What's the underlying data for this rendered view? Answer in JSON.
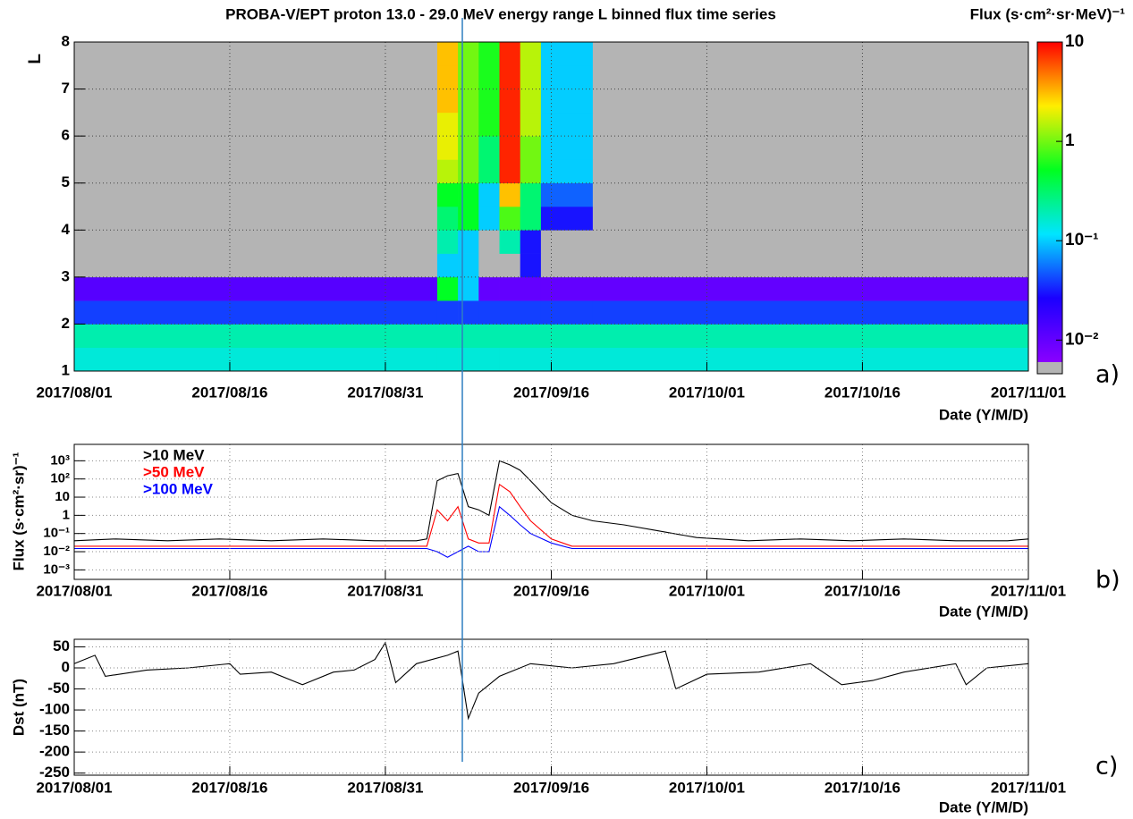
{
  "chart_data": [
    {
      "type": "heatmap",
      "title": "PROBA-V/EPT proton 13.0 - 29.0 MeV energy range L binned flux time series",
      "colorbar_label": "Flux (s·cm²·sr·MeV)⁻¹",
      "ylabel": "L",
      "xlabel": "Date (Y/M/D)",
      "panel_label": "a)",
      "x_edges": [
        "2017/08/01",
        "2017/08/16",
        "2017/08/31",
        "2017/09/05",
        "2017/09/07",
        "2017/09/09",
        "2017/09/11",
        "2017/09/13",
        "2017/09/15",
        "2017/09/20",
        "2017/10/01",
        "2017/10/16",
        "2017/11/01"
      ],
      "y_edges": [
        1,
        1.5,
        2,
        2.5,
        3,
        3.5,
        4,
        4.5,
        5,
        5.5,
        6,
        6.5,
        7,
        7.5,
        8
      ],
      "z": [
        [
          0.15,
          0.15,
          0.15,
          0.15,
          0.15,
          0.15,
          0.15,
          0.15,
          0.15,
          0.15,
          0.15,
          0.15
        ],
        [
          0.2,
          0.2,
          0.2,
          0.2,
          0.2,
          0.2,
          0.2,
          0.2,
          0.2,
          0.2,
          0.2,
          0.2
        ],
        [
          0.04,
          0.04,
          0.04,
          0.04,
          0.04,
          0.04,
          0.04,
          0.04,
          0.04,
          0.04,
          0.04,
          0.04
        ],
        [
          0.012,
          0.012,
          0.012,
          0.5,
          0.1,
          0.01,
          0.01,
          0.01,
          0.01,
          0.01,
          0.01,
          0.01
        ],
        [
          null,
          null,
          null,
          0.1,
          0.1,
          null,
          null,
          0.03,
          null,
          null,
          null,
          null
        ],
        [
          null,
          null,
          null,
          0.2,
          0.1,
          null,
          0.2,
          0.03,
          null,
          null,
          null,
          null
        ],
        [
          null,
          null,
          null,
          0.3,
          0.5,
          0.1,
          0.8,
          0.3,
          0.03,
          null,
          null,
          null
        ],
        [
          null,
          null,
          null,
          0.5,
          0.5,
          0.1,
          3,
          0.3,
          0.05,
          null,
          null,
          null
        ],
        [
          null,
          null,
          null,
          1.5,
          1,
          0.3,
          8,
          1,
          0.1,
          null,
          null,
          null
        ],
        [
          null,
          null,
          null,
          2,
          1,
          0.3,
          8,
          1,
          0.1,
          null,
          null,
          null
        ],
        [
          null,
          null,
          null,
          2,
          1,
          0.6,
          8,
          1.5,
          0.1,
          null,
          null,
          null
        ],
        [
          null,
          null,
          null,
          3,
          1,
          0.6,
          8,
          1.5,
          0.1,
          null,
          null,
          null
        ],
        [
          null,
          null,
          null,
          3,
          1,
          0.6,
          8,
          1.5,
          0.1,
          null,
          null,
          null
        ],
        [
          null,
          null,
          null,
          3,
          1,
          0.6,
          8,
          1.5,
          0.1,
          null,
          null,
          null
        ]
      ],
      "zscale": "log",
      "zlim": [
        0.006,
        10
      ],
      "zticks": [
        {
          "value": 0.01,
          "label": "10⁻²"
        },
        {
          "value": 0.1,
          "label": "10⁻¹"
        },
        1,
        10
      ],
      "colormap": [
        "#8a00ff",
        "#1a00ff",
        "#00e5ff",
        "#00ff20",
        "#ffee00",
        "#ff0000"
      ],
      "underflow_color": "#b4b4b4",
      "xlim": [
        "2017/08/01",
        "2017/11/01"
      ],
      "xticks": [
        "2017/08/01",
        "2017/08/16",
        "2017/08/31",
        "2017/09/16",
        "2017/10/01",
        "2017/10/16",
        "2017/11/01"
      ],
      "ylim": [
        1,
        8
      ],
      "yticks": [
        1,
        2,
        3,
        4,
        5,
        6,
        7,
        8
      ],
      "grid": true
    },
    {
      "type": "line",
      "ylabel": "Flux (s·cm²·sr)⁻¹",
      "xlabel": "Date (Y/M/D)",
      "panel_label": "b)",
      "x": [
        "2017/08/01",
        "2017/08/05",
        "2017/08/10",
        "2017/08/15",
        "2017/08/20",
        "2017/08/25",
        "2017/08/30",
        "2017/09/03",
        "2017/09/04",
        "2017/09/05",
        "2017/09/06",
        "2017/09/07",
        "2017/09/08",
        "2017/09/09",
        "2017/09/10",
        "2017/09/11",
        "2017/09/12",
        "2017/09/13",
        "2017/09/14",
        "2017/09/16",
        "2017/09/18",
        "2017/09/20",
        "2017/09/23",
        "2017/09/26",
        "2017/09/30",
        "2017/10/05",
        "2017/10/10",
        "2017/10/15",
        "2017/10/20",
        "2017/10/25",
        "2017/10/30",
        "2017/11/01"
      ],
      "series": [
        {
          "name": ">10 MeV",
          "color": "#000000",
          "values": [
            0.04,
            0.05,
            0.04,
            0.05,
            0.04,
            0.05,
            0.04,
            0.04,
            0.05,
            80,
            150,
            200,
            3,
            2,
            1,
            1000,
            600,
            300,
            80,
            5,
            1,
            0.5,
            0.3,
            0.15,
            0.06,
            0.04,
            0.05,
            0.04,
            0.05,
            0.04,
            0.04,
            0.05
          ]
        },
        {
          "name": ">50 MeV",
          "color": "#ff0000",
          "values": [
            0.02,
            0.02,
            0.02,
            0.02,
            0.02,
            0.02,
            0.02,
            0.02,
            0.02,
            2,
            0.5,
            3,
            0.05,
            0.03,
            0.03,
            50,
            20,
            3,
            0.5,
            0.05,
            0.02,
            0.02,
            0.02,
            0.02,
            0.02,
            0.02,
            0.02,
            0.02,
            0.02,
            0.02,
            0.02,
            0.02
          ]
        },
        {
          "name": ">100 MeV",
          "color": "#0000ff",
          "values": [
            0.015,
            0.015,
            0.015,
            0.015,
            0.015,
            0.015,
            0.015,
            0.015,
            0.015,
            0.01,
            0.005,
            0.01,
            0.02,
            0.01,
            0.01,
            3,
            1,
            0.3,
            0.1,
            0.03,
            0.015,
            0.015,
            0.015,
            0.015,
            0.015,
            0.015,
            0.015,
            0.015,
            0.015,
            0.015,
            0.015,
            0.015
          ]
        }
      ],
      "legend": "top-left",
      "yscale": "log",
      "xlim": [
        "2017/08/01",
        "2017/11/01"
      ],
      "xticks": [
        "2017/08/01",
        "2017/08/16",
        "2017/08/31",
        "2017/09/16",
        "2017/10/01",
        "2017/10/16",
        "2017/11/01"
      ],
      "ylim": [
        0.0003,
        8000
      ],
      "yticks": [
        {
          "value": 0.001,
          "label": "10⁻³"
        },
        {
          "value": 0.01,
          "label": "10⁻²"
        },
        {
          "value": 0.1,
          "label": "10⁻¹"
        },
        1,
        10,
        {
          "value": 100,
          "label": "10²"
        },
        {
          "value": 1000,
          "label": "10³"
        }
      ],
      "grid": true
    },
    {
      "type": "line",
      "ylabel": "Dst (nT)",
      "xlabel": "Date (Y/M/D)",
      "panel_label": "c)",
      "x": [
        "2017/08/01",
        "2017/08/03",
        "2017/08/04",
        "2017/08/08",
        "2017/08/12",
        "2017/08/16",
        "2017/08/17",
        "2017/08/20",
        "2017/08/23",
        "2017/08/26",
        "2017/08/28",
        "2017/08/30",
        "2017/08/31",
        "2017/09/01",
        "2017/09/03",
        "2017/09/06",
        "2017/09/07",
        "2017/09/08",
        "2017/09/09",
        "2017/09/11",
        "2017/09/14",
        "2017/09/18",
        "2017/09/22",
        "2017/09/27",
        "2017/09/28",
        "2017/10/01",
        "2017/10/06",
        "2017/10/11",
        "2017/10/14",
        "2017/10/17",
        "2017/10/20",
        "2017/10/25",
        "2017/10/26",
        "2017/10/28",
        "2017/11/01"
      ],
      "series": [
        {
          "name": "Dst",
          "color": "#000000",
          "values": [
            10,
            30,
            -20,
            -5,
            0,
            10,
            -15,
            -10,
            -40,
            -10,
            -5,
            20,
            60,
            -35,
            10,
            30,
            40,
            -120,
            -60,
            -20,
            10,
            0,
            10,
            40,
            -50,
            -15,
            -10,
            10,
            -40,
            -30,
            -10,
            10,
            -40,
            0,
            10
          ]
        }
      ],
      "xlim": [
        "2017/08/01",
        "2017/11/01"
      ],
      "xticks": [
        "2017/08/01",
        "2017/08/16",
        "2017/08/31",
        "2017/09/16",
        "2017/10/01",
        "2017/10/16",
        "2017/11/01"
      ],
      "ylim": [
        -255,
        68
      ],
      "yticks": [
        50,
        0,
        -50,
        -100,
        -150,
        -200,
        -250
      ],
      "grid": true
    }
  ]
}
